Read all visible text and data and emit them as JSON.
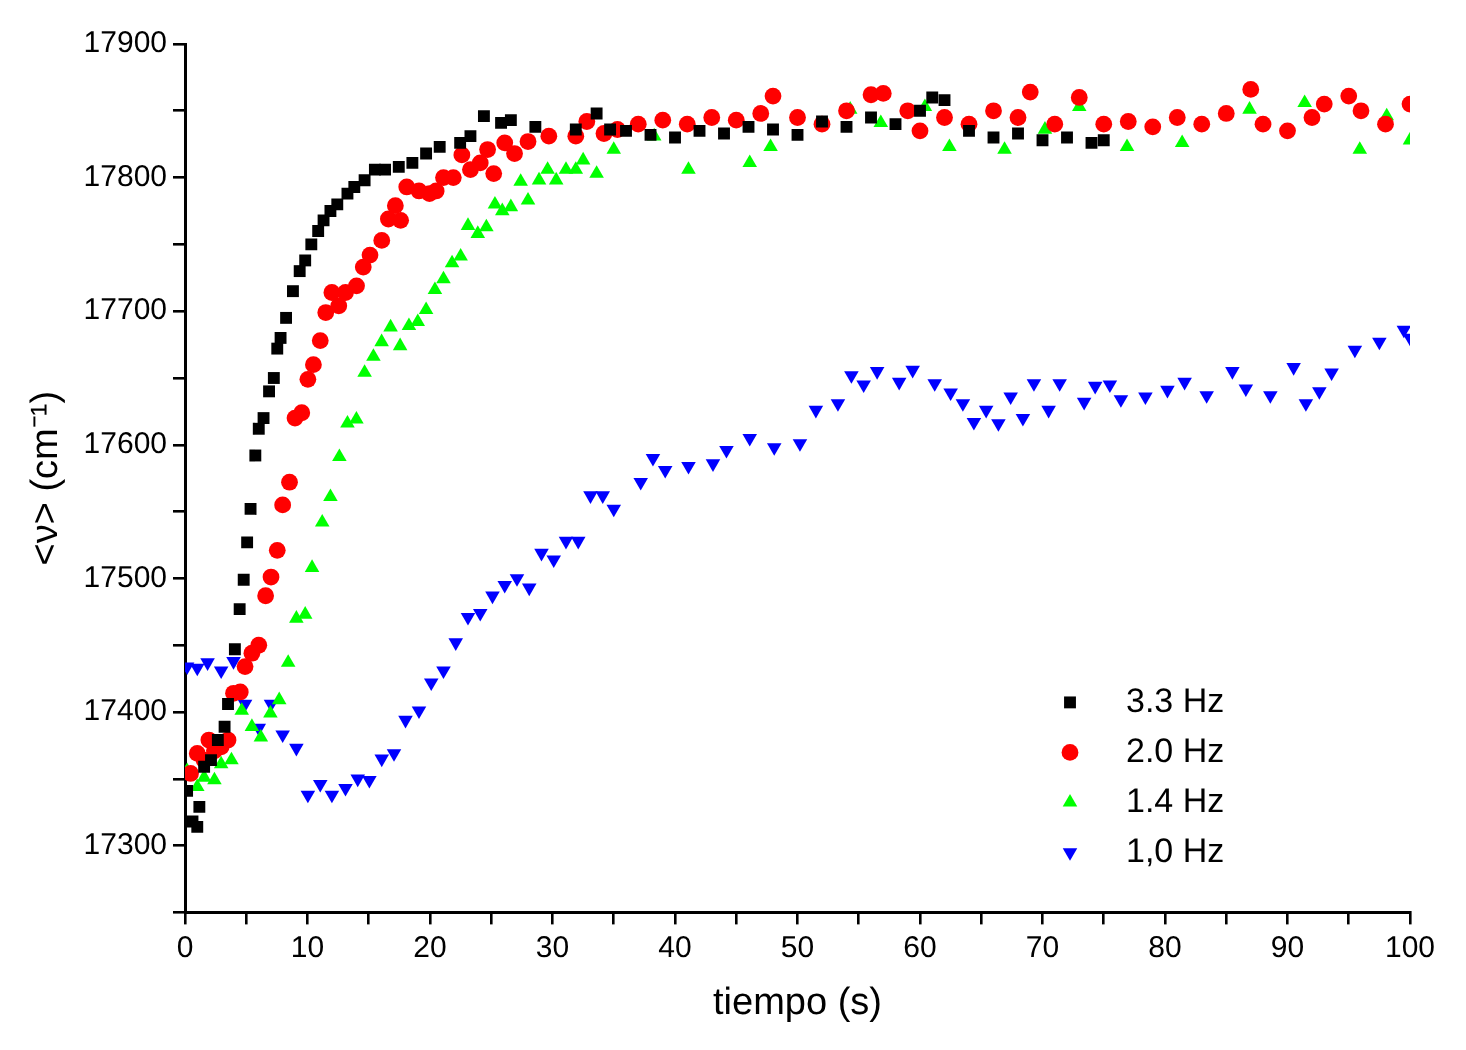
{
  "chart_data": {
    "type": "scatter",
    "xlabel": "tiempo (s)",
    "ylabel": "<ν> (cm⁻¹)",
    "xlim": [
      0,
      100
    ],
    "ylim": [
      17250,
      17900
    ],
    "xticks": [
      0,
      {
        "value": 5,
        "label": null
      },
      10,
      {
        "value": 15,
        "label": null
      },
      20,
      {
        "value": 25,
        "label": null
      },
      30,
      {
        "value": 35,
        "label": null
      },
      40,
      {
        "value": 45,
        "label": null
      },
      50,
      {
        "value": 55,
        "label": null
      },
      60,
      {
        "value": 65,
        "label": null
      },
      70,
      {
        "value": 75,
        "label": null
      },
      80,
      {
        "value": 85,
        "label": null
      },
      90,
      {
        "value": 95,
        "label": null
      },
      100
    ],
    "yticks": [
      {
        "value": 17250,
        "label": null
      },
      17300,
      {
        "value": 17350,
        "label": null
      },
      17400,
      {
        "value": 17450,
        "label": null
      },
      17500,
      {
        "value": 17550,
        "label": null
      },
      17600,
      {
        "value": 17650,
        "label": null
      },
      17700,
      {
        "value": 17750,
        "label": null
      },
      17800,
      {
        "value": 17850,
        "label": null
      },
      17900
    ],
    "grid": false,
    "legend": "bottom right",
    "series": [
      {
        "name": "3.3 Hz",
        "color": "#000000",
        "marker": "square",
        "x": [
          0.17,
          0.61,
          1.0,
          1.17,
          1.56,
          2.12,
          2.68,
          3.23,
          3.51,
          4.07,
          4.46,
          4.79,
          5.07,
          5.35,
          5.74,
          6.02,
          6.41,
          6.86,
          7.25,
          7.53,
          7.8,
          8.25,
          8.81,
          9.36,
          9.81,
          10.31,
          10.87,
          11.31,
          11.87,
          12.43,
          13.26,
          13.82,
          14.66,
          15.5,
          16.33,
          17.45,
          18.56,
          19.68,
          20.79,
          22.46,
          23.3,
          24.4,
          25.8,
          26.6,
          28.6,
          31.9,
          33.6,
          34.7,
          36,
          38,
          40,
          42,
          44,
          46,
          48,
          50,
          52,
          54,
          56,
          58,
          60,
          61,
          62,
          64,
          66,
          68,
          70,
          72,
          74,
          75
        ],
        "values": [
          17341,
          17318,
          17314,
          17329,
          17359,
          17364,
          17379,
          17389,
          17406,
          17447,
          17477,
          17499,
          17527,
          17552,
          17592,
          17612,
          17620,
          17640,
          17650,
          17672,
          17680,
          17695,
          17715,
          17730,
          17738,
          17750,
          17760,
          17768,
          17775,
          17780,
          17788,
          17793,
          17798,
          17806,
          17806,
          17808,
          17811,
          17818,
          17823,
          17826,
          17831,
          17846,
          17841,
          17843,
          17838,
          17836,
          17848,
          17836,
          17835,
          17832,
          17830,
          17835,
          17833,
          17838,
          17836,
          17832,
          17842,
          17838,
          17845,
          17840,
          17850,
          17860,
          17858,
          17835,
          17830,
          17833,
          17828,
          17830,
          17826,
          17828
        ]
      },
      {
        "name": "2.0 Hz",
        "color": "#ff0000",
        "marker": "circle",
        "x": [
          0.45,
          1.0,
          1.56,
          1.95,
          2.4,
          2.95,
          3.51,
          3.96,
          4.51,
          4.9,
          5.46,
          6.02,
          6.58,
          7.02,
          7.53,
          7.97,
          8.53,
          8.98,
          9.53,
          10.03,
          10.48,
          11.04,
          11.49,
          11.99,
          12.55,
          13.1,
          14.0,
          14.55,
          15.1,
          16.06,
          16.6,
          17.17,
          17.6,
          18.1,
          19.1,
          19.96,
          20.5,
          21.1,
          21.9,
          22.6,
          23.3,
          24.1,
          24.7,
          25.2,
          26.1,
          26.9,
          28.0,
          29.7,
          31.9,
          32.8,
          34.2,
          35.3,
          37,
          39,
          41,
          43,
          45,
          47,
          48,
          50,
          52,
          54,
          56,
          57,
          59,
          60,
          62,
          64,
          66,
          68,
          69,
          71,
          73,
          75,
          77,
          79,
          81,
          83,
          85,
          87,
          88,
          90,
          92,
          93,
          95,
          96,
          98,
          100
        ],
        "values": [
          17354,
          17369,
          17364,
          17379,
          17371,
          17374,
          17379,
          17414,
          17415,
          17434,
          17444,
          17450,
          17487,
          17501,
          17521,
          17555,
          17572,
          17620,
          17624,
          17649,
          17660,
          17678,
          17699,
          17714,
          17704,
          17714,
          17719,
          17733,
          17742,
          17753,
          17769,
          17779,
          17768,
          17793,
          17790,
          17788,
          17790,
          17800,
          17800,
          17817,
          17806,
          17811,
          17821,
          17803,
          17826,
          17818,
          17827,
          17831,
          17831,
          17842,
          17833,
          17836,
          17840,
          17843,
          17840,
          17845,
          17843,
          17848,
          17861,
          17845,
          17840,
          17850,
          17862,
          17863,
          17850,
          17835,
          17845,
          17840,
          17850,
          17845,
          17864,
          17840,
          17860,
          17840,
          17842,
          17838,
          17845,
          17840,
          17848,
          17866,
          17840,
          17835,
          17845,
          17855,
          17861,
          17850,
          17840,
          17855
        ]
      },
      {
        "name": "1.4 Hz",
        "color": "#00ff00",
        "marker": "triangle",
        "x": [
          0.17,
          1.0,
          1.56,
          2.4,
          2.95,
          3.79,
          4.63,
          5.46,
          6.19,
          6.97,
          7.69,
          8.42,
          9.09,
          9.81,
          10.37,
          11.2,
          11.87,
          12.6,
          13.26,
          13.99,
          14.66,
          15.38,
          16.05,
          16.78,
          17.56,
          18.28,
          19.0,
          19.68,
          20.4,
          21.1,
          21.8,
          22.5,
          23.1,
          23.9,
          24.6,
          25.3,
          25.9,
          26.6,
          27.4,
          28.0,
          28.9,
          29.6,
          30.3,
          31.1,
          31.9,
          32.5,
          33.6,
          35.0,
          38.3,
          41.1,
          46.1,
          47.8,
          54.3,
          56.8,
          60.4,
          62.4,
          66.9,
          70.2,
          73.0,
          76.9,
          81.4,
          86.9,
          91.4,
          95.9,
          98.1,
          100
        ],
        "values": [
          17356,
          17344,
          17351,
          17349,
          17361,
          17364,
          17401,
          17389,
          17381,
          17399,
          17409,
          17437,
          17470,
          17473,
          17508,
          17542,
          17561,
          17591,
          17616,
          17619,
          17654,
          17666,
          17677,
          17688,
          17674,
          17689,
          17692,
          17701,
          17716,
          17724,
          17736,
          17741,
          17764,
          17758,
          17763,
          17780,
          17775,
          17778,
          17797,
          17783,
          17798,
          17806,
          17798,
          17806,
          17806,
          17813,
          17803,
          17821,
          17831,
          17806,
          17811,
          17823,
          17851,
          17841,
          17853,
          17823,
          17821,
          17836,
          17853,
          17823,
          17826,
          17851,
          17856,
          17821,
          17846,
          17828
        ]
      },
      {
        "name": "1,0 Hz",
        "color": "#0000ff",
        "marker": "triangle-down",
        "x": [
          0.17,
          1.0,
          1.84,
          2.95,
          3.96,
          4.9,
          6.02,
          7.02,
          7.97,
          9.09,
          10.03,
          11.04,
          11.99,
          13.1,
          14.1,
          15.05,
          16.06,
          17.06,
          18.0,
          19.1,
          20.1,
          21.1,
          22.1,
          23.1,
          24.1,
          25.1,
          26.1,
          27.1,
          28.1,
          29.1,
          30.1,
          31.1,
          32.1,
          33.1,
          34.1,
          35.0,
          37.2,
          38.2,
          39.2,
          41.1,
          43.1,
          44.2,
          46.1,
          48.1,
          50.2,
          51.5,
          53.3,
          54.4,
          55.4,
          56.5,
          58.3,
          59.4,
          61.2,
          62.5,
          63.5,
          64.4,
          65.4,
          66.4,
          67.4,
          68.4,
          69.3,
          70.5,
          71.4,
          73.4,
          74.3,
          75.5,
          76.4,
          78.4,
          80.2,
          81.6,
          83.4,
          85.5,
          86.6,
          88.6,
          90.5,
          91.5,
          92.6,
          93.6,
          95.5,
          97.5,
          99.5,
          100
        ],
        "values": [
          17434,
          17433,
          17437,
          17431,
          17438,
          17406,
          17388,
          17406,
          17383,
          17373,
          17338,
          17346,
          17338,
          17343,
          17350,
          17349,
          17365,
          17369,
          17394,
          17401,
          17422,
          17431,
          17452,
          17471,
          17474,
          17487,
          17495,
          17500,
          17493,
          17519,
          17514,
          17528,
          17528,
          17562,
          17562,
          17552,
          17572,
          17590,
          17581,
          17584,
          17586,
          17596,
          17605,
          17598,
          17601,
          17626,
          17631,
          17652,
          17645,
          17655,
          17647,
          17656,
          17646,
          17639,
          17631,
          17617,
          17626,
          17616,
          17636,
          17620,
          17646,
          17626,
          17646,
          17632,
          17644,
          17645,
          17634,
          17636,
          17641,
          17647,
          17637,
          17655,
          17642,
          17637,
          17658,
          17631,
          17640,
          17654,
          17671,
          17677,
          17686,
          17680
        ]
      }
    ]
  }
}
